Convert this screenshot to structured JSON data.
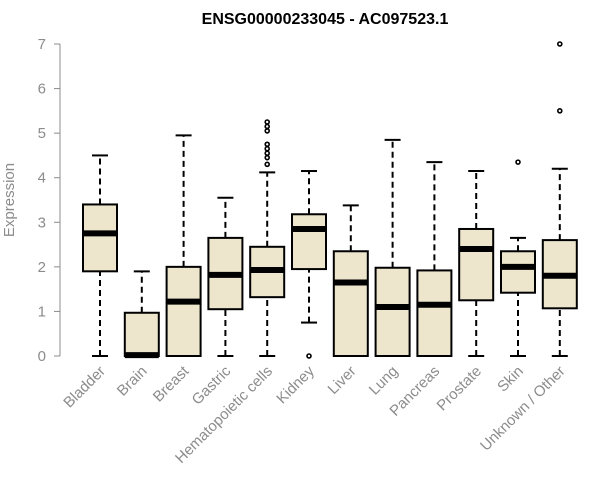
{
  "chart_data": {
    "type": "boxplot",
    "title": "ENSG00000233045 - AC097523.1",
    "ylabel": "Expression",
    "xlabel": "",
    "ylim": [
      0,
      7
    ],
    "yticks": [
      "0",
      "1",
      "2",
      "3",
      "4",
      "5",
      "6",
      "7"
    ],
    "grid": false,
    "colors": {
      "box_fill": "#ede6cc",
      "box_stroke": "#000000",
      "axis": "#8c8c8c"
    },
    "categories": [
      "Bladder",
      "Brain",
      "Breast",
      "Gastric",
      "Hematopoietic cells",
      "Kidney",
      "Liver",
      "Lung",
      "Pancreas",
      "Prostate",
      "Skin",
      "Unknown / Other"
    ],
    "boxes": [
      {
        "name": "Bladder",
        "min": 0.0,
        "q1": 1.9,
        "median": 2.75,
        "q3": 3.4,
        "max": 4.5,
        "outliers": []
      },
      {
        "name": "Brain",
        "min": 0.0,
        "q1": 0.0,
        "median": 0.02,
        "q3": 0.97,
        "max": 1.9,
        "outliers": []
      },
      {
        "name": "Breast",
        "min": 0.0,
        "q1": 0.0,
        "median": 1.22,
        "q3": 2.0,
        "max": 4.95,
        "outliers": []
      },
      {
        "name": "Gastric",
        "min": 0.0,
        "q1": 1.05,
        "median": 1.82,
        "q3": 2.65,
        "max": 3.55,
        "outliers": []
      },
      {
        "name": "Hematopoietic cells",
        "min": 0.0,
        "q1": 1.32,
        "median": 1.93,
        "q3": 2.45,
        "max": 4.12,
        "outliers": [
          4.3,
          4.45,
          4.55,
          4.65,
          4.75,
          5.05,
          5.15,
          5.25
        ]
      },
      {
        "name": "Kidney",
        "min": 0.75,
        "q1": 1.95,
        "median": 2.85,
        "q3": 3.18,
        "max": 4.15,
        "outliers": [
          0.0
        ]
      },
      {
        "name": "Liver",
        "min": 0.0,
        "q1": 0.0,
        "median": 1.65,
        "q3": 2.35,
        "max": 3.38,
        "outliers": []
      },
      {
        "name": "Lung",
        "min": 0.0,
        "q1": 0.0,
        "median": 1.1,
        "q3": 1.98,
        "max": 4.85,
        "outliers": []
      },
      {
        "name": "Pancreas",
        "min": 0.0,
        "q1": 0.0,
        "median": 1.15,
        "q3": 1.92,
        "max": 4.35,
        "outliers": []
      },
      {
        "name": "Prostate",
        "min": 0.0,
        "q1": 1.25,
        "median": 2.4,
        "q3": 2.85,
        "max": 4.15,
        "outliers": []
      },
      {
        "name": "Skin",
        "min": 0.0,
        "q1": 1.42,
        "median": 2.0,
        "q3": 2.35,
        "max": 2.65,
        "outliers": [
          4.35
        ]
      },
      {
        "name": "Unknown / Other",
        "min": 0.0,
        "q1": 1.07,
        "median": 1.8,
        "q3": 2.6,
        "max": 4.2,
        "outliers": [
          5.5,
          7.0
        ]
      }
    ]
  }
}
